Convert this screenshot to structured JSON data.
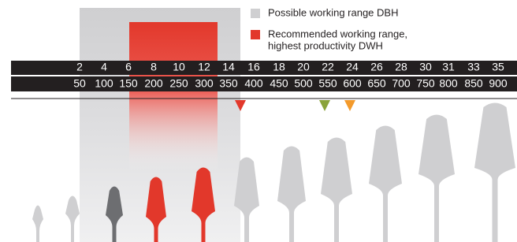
{
  "legend": [
    {
      "lines": [
        "Possible working range DBH"
      ]
    },
    {
      "lines": [
        "Recommended working range,",
        "highest productivity DWH"
      ]
    }
  ],
  "scale": {
    "top": [
      2,
      4,
      6,
      8,
      10,
      12,
      14,
      16,
      18,
      20,
      22,
      24,
      26,
      28,
      30,
      31,
      33,
      35
    ],
    "bottom": [
      50,
      100,
      150,
      200,
      250,
      300,
      350,
      400,
      450,
      500,
      550,
      600,
      650,
      700,
      750,
      800,
      850,
      900
    ]
  }
}
